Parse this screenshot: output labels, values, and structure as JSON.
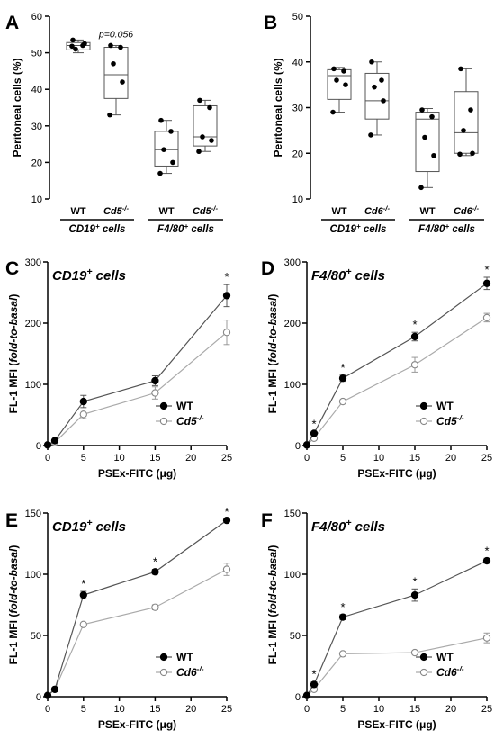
{
  "chart_data": [
    {
      "panel": "A",
      "type": "box",
      "ylabel": "Peritoneal cells (%)",
      "ylim": [
        10,
        60
      ],
      "yticks": [
        10,
        20,
        30,
        40,
        50,
        60
      ],
      "categories": [
        "WT",
        "Cd5-/-",
        "WT",
        "Cd5-/-"
      ],
      "groups": [
        {
          "label": "CD19+ cells",
          "categories": [
            0,
            1
          ]
        },
        {
          "label": "F4/80+ cells",
          "categories": [
            2,
            3
          ]
        }
      ],
      "boxes": [
        {
          "min": 50,
          "q1": 50.8,
          "median": 52,
          "q3": 52.8,
          "max": 53.5
        },
        {
          "min": 33,
          "q1": 37.5,
          "median": 44,
          "q3": 51.5,
          "max": 52
        },
        {
          "min": 17,
          "q1": 19,
          "median": 23.5,
          "q3": 28.5,
          "max": 31.5
        },
        {
          "min": 23,
          "q1": 24.5,
          "median": 27,
          "q3": 35.5,
          "max": 37
        }
      ],
      "points": [
        [
          53.5,
          52,
          51,
          52.5,
          51.8
        ],
        [
          52,
          51.5,
          47,
          42,
          33
        ],
        [
          31.5,
          28.5,
          23.5,
          20,
          17
        ],
        [
          37,
          35,
          27,
          26,
          23
        ]
      ],
      "annotations": [
        {
          "category": 1,
          "text": "p=0.056"
        }
      ]
    },
    {
      "panel": "B",
      "type": "box",
      "ylabel": "Peritoneal cells (%)",
      "ylim": [
        10,
        50
      ],
      "yticks": [
        10,
        20,
        30,
        40,
        50
      ],
      "categories": [
        "WT",
        "Cd6-/-",
        "WT",
        "Cd6-/-"
      ],
      "groups": [
        {
          "label": "CD19+ cells",
          "categories": [
            0,
            1
          ]
        },
        {
          "label": "F4/80+ cells",
          "categories": [
            2,
            3
          ]
        }
      ],
      "boxes": [
        {
          "min": 29,
          "q1": 31.8,
          "median": 37,
          "q3": 38.3,
          "max": 38.8
        },
        {
          "min": 24,
          "q1": 27.5,
          "median": 31.5,
          "q3": 37.5,
          "max": 40
        },
        {
          "min": 12.5,
          "q1": 16,
          "median": 27.5,
          "q3": 29,
          "max": 29.8
        },
        {
          "min": 19.5,
          "q1": 20,
          "median": 24.5,
          "q3": 33.5,
          "max": 38.5
        }
      ],
      "points": [
        [
          38.5,
          38,
          36,
          35,
          29
        ],
        [
          40,
          36,
          34.5,
          31.5,
          24
        ],
        [
          29.5,
          28,
          23.5,
          19.5,
          12.5
        ],
        [
          38.5,
          29.5,
          25,
          20,
          19.8
        ]
      ],
      "annotations": []
    },
    {
      "panel": "C",
      "type": "line",
      "title": "CD19+ cells",
      "xlabel": "PSEx-FITC (μg)",
      "ylabel": "FL-1 MFI (fold-to-basal)",
      "x": [
        0,
        1,
        5,
        15,
        25
      ],
      "xticks": [
        0,
        5,
        10,
        15,
        20,
        25
      ],
      "ylim": [
        0,
        300
      ],
      "yticks": [
        0,
        100,
        200,
        300
      ],
      "series": [
        {
          "name": "WT",
          "values": [
            1,
            8,
            72,
            106,
            245
          ],
          "errors": [
            0,
            2,
            10,
            8,
            18
          ]
        },
        {
          "name": "Cd5-/-",
          "values": [
            1,
            5,
            51,
            86,
            185
          ],
          "errors": [
            0,
            2,
            7,
            10,
            20
          ]
        }
      ],
      "significant_x": [
        25
      ],
      "legend": "bottom-right"
    },
    {
      "panel": "D",
      "type": "line",
      "title": "F4/80+ cells",
      "xlabel": "PSEx-FITC (μg)",
      "ylabel": "FL-1 MFI (fold-to-basal)",
      "x": [
        0,
        1,
        5,
        15,
        25
      ],
      "xticks": [
        0,
        5,
        10,
        15,
        20,
        25
      ],
      "ylim": [
        0,
        300
      ],
      "yticks": [
        0,
        100,
        200,
        300
      ],
      "series": [
        {
          "name": "WT",
          "values": [
            1,
            20,
            110,
            178,
            265
          ],
          "errors": [
            0,
            3,
            5,
            7,
            10
          ]
        },
        {
          "name": "Cd5-/-",
          "values": [
            1,
            12,
            72,
            132,
            209
          ],
          "errors": [
            0,
            2,
            3,
            12,
            7
          ]
        }
      ],
      "significant_x": [
        1,
        5,
        15,
        25
      ],
      "legend": "bottom-right"
    },
    {
      "panel": "E",
      "type": "line",
      "title": "CD19+ cells",
      "xlabel": "PSEx-FITC (μg)",
      "ylabel": "FL-1 MFI (fold-to-basal)",
      "x": [
        0,
        1,
        5,
        15,
        25
      ],
      "xticks": [
        0,
        5,
        10,
        15,
        20,
        25
      ],
      "ylim": [
        0,
        150
      ],
      "yticks": [
        0,
        50,
        100,
        150
      ],
      "series": [
        {
          "name": "WT",
          "values": [
            1,
            6,
            83,
            102,
            144
          ],
          "errors": [
            0,
            1,
            3,
            2,
            1
          ]
        },
        {
          "name": "Cd6-/-",
          "values": [
            1,
            6,
            59,
            73,
            104
          ],
          "errors": [
            0,
            1,
            1,
            2,
            5
          ]
        }
      ],
      "significant_x": [
        5,
        15,
        25
      ],
      "legend": "bottom-right"
    },
    {
      "panel": "F",
      "type": "line",
      "title": "F4/80+ cells",
      "xlabel": "PSEx-FITC (μg)",
      "ylabel": "FL-1 MFI (fold-to-basal)",
      "x": [
        0,
        1,
        5,
        15,
        25
      ],
      "xticks": [
        0,
        5,
        10,
        15,
        20,
        25
      ],
      "ylim": [
        0,
        150
      ],
      "yticks": [
        0,
        50,
        100,
        150
      ],
      "series": [
        {
          "name": "WT",
          "values": [
            1,
            10,
            65,
            83,
            111
          ],
          "errors": [
            0,
            2,
            2,
            5,
            2
          ]
        },
        {
          "name": "Cd6-/-",
          "values": [
            1,
            6,
            35,
            36,
            48
          ],
          "errors": [
            0,
            1,
            1,
            1,
            4
          ]
        }
      ],
      "significant_x": [
        1,
        5,
        15,
        25
      ],
      "legend": "bottom-right"
    }
  ]
}
